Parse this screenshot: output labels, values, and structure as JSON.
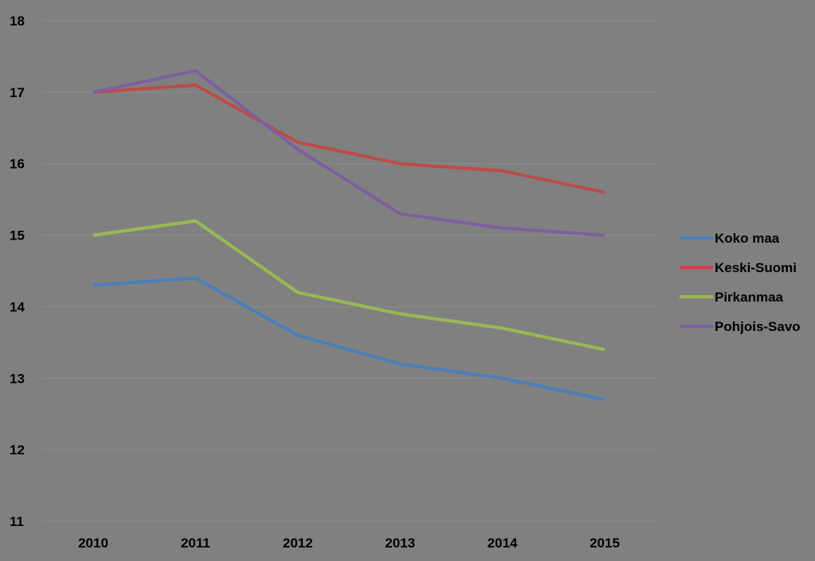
{
  "chart_data": {
    "type": "line",
    "title": "",
    "xlabel": "",
    "ylabel": "",
    "categories": [
      "2010",
      "2011",
      "2012",
      "2013",
      "2014",
      "2015"
    ],
    "ylim": [
      11,
      18
    ],
    "yticks": [
      11,
      12,
      13,
      14,
      15,
      16,
      17,
      18
    ],
    "grid": true,
    "legend_position": "right",
    "series": [
      {
        "name": "Koko maa",
        "color": "#4a7ebb",
        "values": [
          14.3,
          14.4,
          13.6,
          13.2,
          13.0,
          12.7
        ]
      },
      {
        "name": "Keski-Suomi",
        "color": "#be4b48",
        "values": [
          17.0,
          17.1,
          16.3,
          16.0,
          15.9,
          15.6
        ]
      },
      {
        "name": "Pirkanmaa",
        "color": "#98b954",
        "values": [
          15.0,
          15.2,
          14.2,
          13.9,
          13.7,
          13.4
        ]
      },
      {
        "name": "Pohjois-Savo",
        "color": "#7d60a0",
        "values": [
          17.0,
          17.3,
          16.2,
          15.3,
          15.1,
          15.0
        ]
      }
    ]
  }
}
